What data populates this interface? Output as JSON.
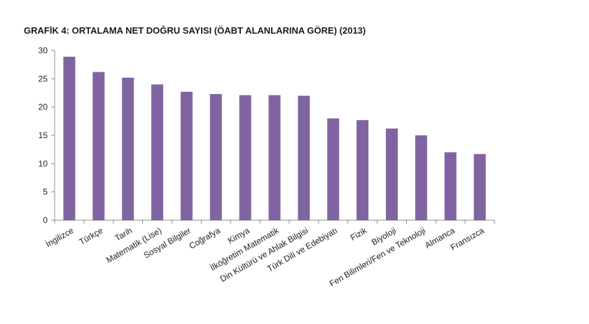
{
  "chart_data": {
    "type": "bar",
    "title": "GRAFİK 4: ORTALAMA NET DOĞRU SAYISI (ÖABT ALANLARINA GÖRE) (2013)",
    "xlabel": "",
    "ylabel": "",
    "ylim": [
      0,
      30
    ],
    "yticks": [
      "0",
      "5",
      "10",
      "15",
      "20",
      "25",
      "30"
    ],
    "grid": false,
    "legend": "none",
    "bar_color": "#8064a2",
    "categories": [
      "İngilizce",
      "Türkçe",
      "Tarih",
      "Matematik (Lise)",
      "Sosyal Bilgiler",
      "Coğrafya",
      "Kimya",
      "İlköğretim Matematik",
      "Din Kültürü ve Ahlak Bilgisi",
      "Türk Dili ve Edebiyatı",
      "Fizik",
      "Biyoloji",
      "Fen Bilimleri/Fen ve Teknoloji",
      "Almanca",
      "Fransızca"
    ],
    "values": [
      28.9,
      26.2,
      25.2,
      24.0,
      22.7,
      22.3,
      22.1,
      22.1,
      22.0,
      18.0,
      17.7,
      16.2,
      15.0,
      12.0,
      11.7
    ]
  }
}
